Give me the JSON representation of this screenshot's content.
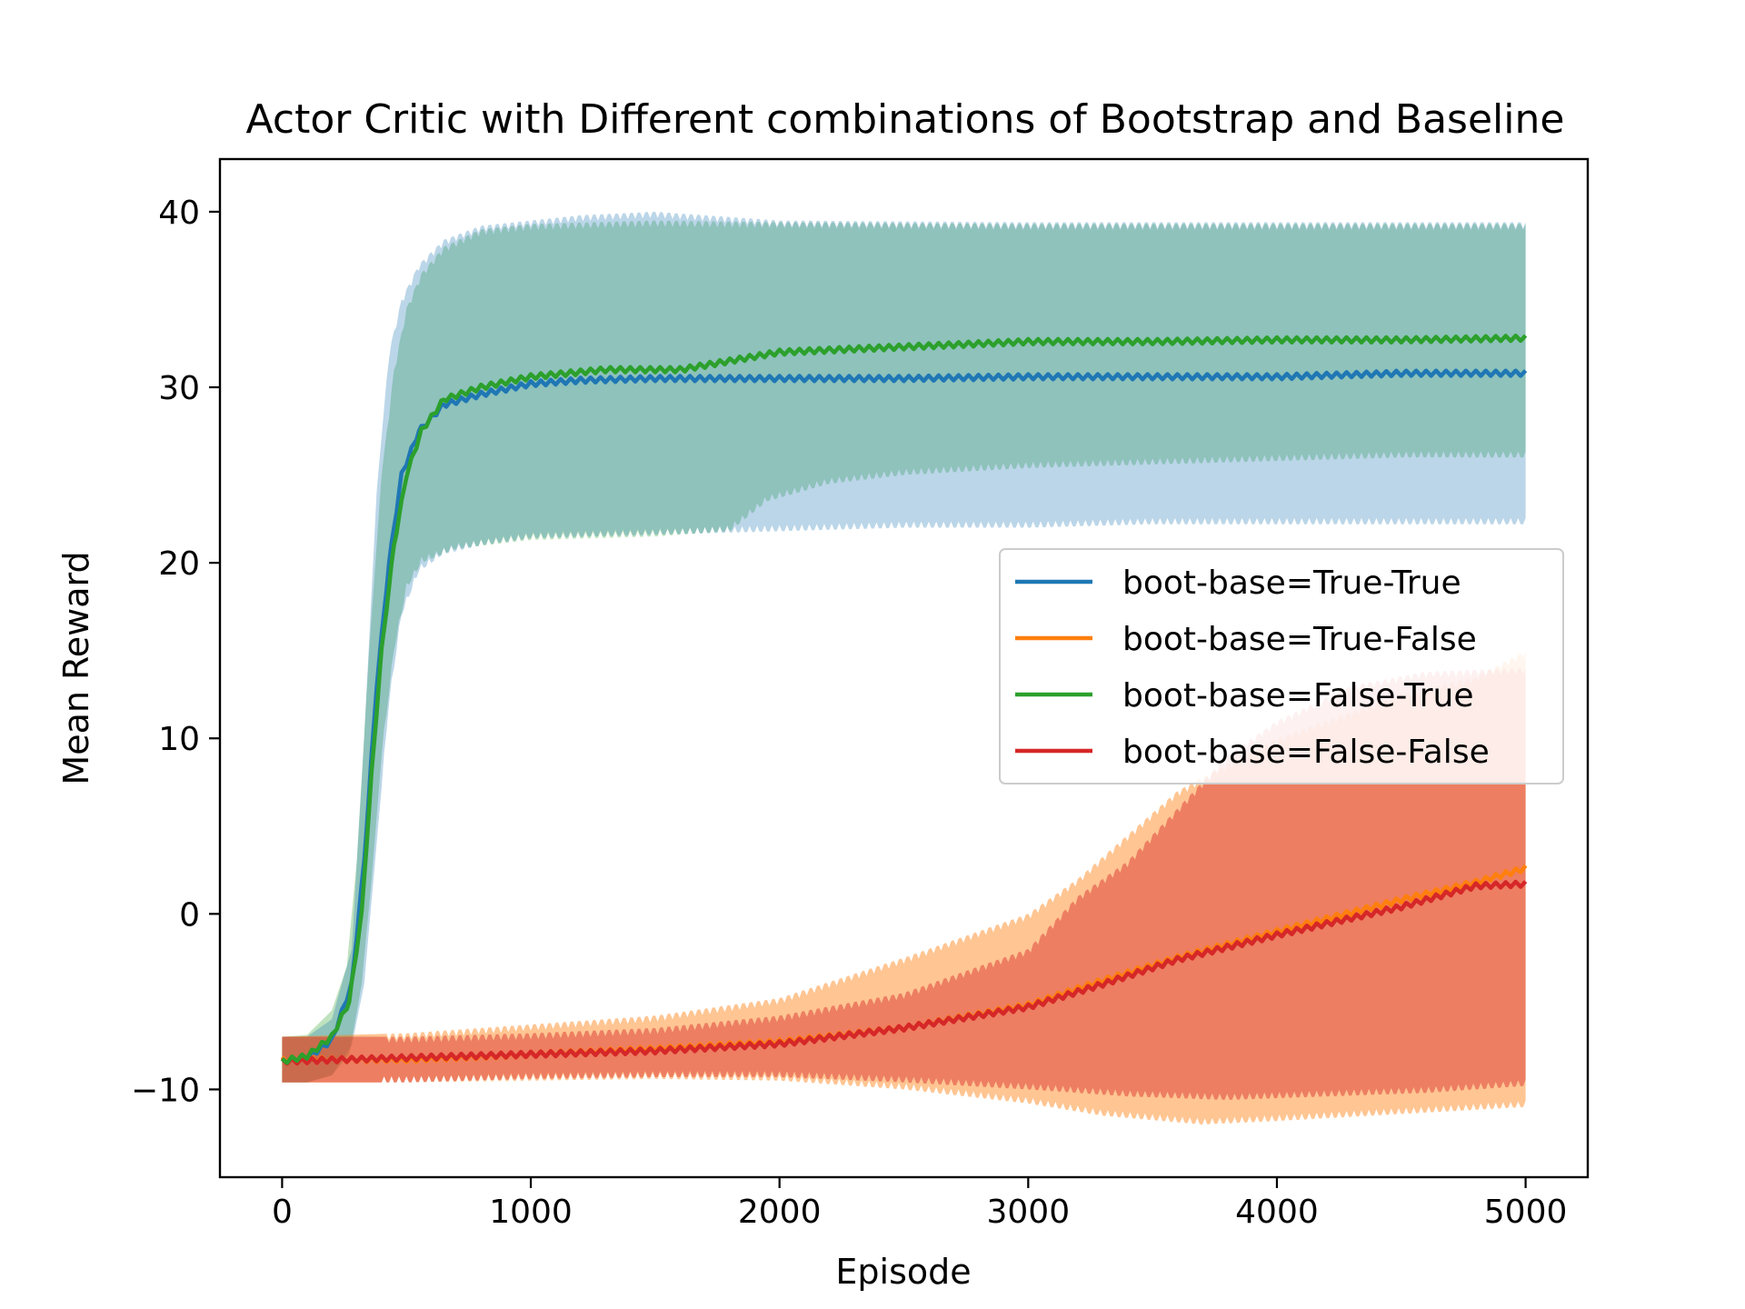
{
  "chart_data": {
    "type": "line",
    "title": "Actor Critic with Different combinations of Bootstrap and Baseline",
    "xlabel": "Episode",
    "ylabel": "Mean Reward",
    "xlim": [
      -250,
      5250
    ],
    "ylim": [
      -15,
      43
    ],
    "xticks": [
      0,
      1000,
      2000,
      3000,
      4000,
      5000
    ],
    "yticks": [
      -10,
      0,
      10,
      20,
      30,
      40
    ],
    "xtick_labels": [
      "0",
      "1000",
      "2000",
      "3000",
      "4000",
      "5000"
    ],
    "ytick_labels": [
      "−10",
      "0",
      "10",
      "20",
      "30",
      "40"
    ],
    "legend_position": "center-right",
    "grid": false,
    "series": [
      {
        "name": "boot-base=True-True",
        "color": "#1f77b4",
        "mean": [
          [
            0,
            -8.4
          ],
          [
            100,
            -8.2
          ],
          [
            200,
            -7.2
          ],
          [
            280,
            -4
          ],
          [
            330,
            3
          ],
          [
            380,
            13
          ],
          [
            430,
            20
          ],
          [
            480,
            25
          ],
          [
            550,
            27.5
          ],
          [
            650,
            29
          ],
          [
            800,
            29.6
          ],
          [
            1000,
            30.2
          ],
          [
            1200,
            30.4
          ],
          [
            1500,
            30.5
          ],
          [
            2000,
            30.5
          ],
          [
            2500,
            30.5
          ],
          [
            3000,
            30.6
          ],
          [
            3500,
            30.6
          ],
          [
            4000,
            30.6
          ],
          [
            4500,
            30.8
          ],
          [
            5000,
            30.8
          ]
        ],
        "upper": [
          [
            0,
            -7
          ],
          [
            100,
            -7
          ],
          [
            200,
            -6
          ],
          [
            280,
            -2
          ],
          [
            330,
            10
          ],
          [
            380,
            24
          ],
          [
            430,
            32
          ],
          [
            480,
            35
          ],
          [
            550,
            37
          ],
          [
            650,
            38.4
          ],
          [
            800,
            39.2
          ],
          [
            1000,
            39.5
          ],
          [
            1200,
            39.8
          ],
          [
            1500,
            40
          ],
          [
            1800,
            39.7
          ],
          [
            2000,
            39.5
          ],
          [
            3000,
            39.4
          ],
          [
            4000,
            39.4
          ],
          [
            5000,
            39.4
          ]
        ],
        "lower": [
          [
            0,
            -9.6
          ],
          [
            100,
            -9.6
          ],
          [
            200,
            -9.2
          ],
          [
            280,
            -7.5
          ],
          [
            330,
            -4
          ],
          [
            380,
            4
          ],
          [
            430,
            12
          ],
          [
            480,
            17
          ],
          [
            550,
            19.5
          ],
          [
            650,
            20.5
          ],
          [
            800,
            21
          ],
          [
            1000,
            21.4
          ],
          [
            1500,
            21.6
          ],
          [
            2000,
            21.8
          ],
          [
            2500,
            22
          ],
          [
            3000,
            22
          ],
          [
            3500,
            22.2
          ],
          [
            4000,
            22.2
          ],
          [
            4500,
            22.2
          ],
          [
            5000,
            22.2
          ]
        ]
      },
      {
        "name": "boot-base=True-False",
        "color": "#ff7f0e",
        "mean": [
          [
            0,
            -8.3
          ],
          [
            500,
            -8.3
          ],
          [
            1000,
            -8
          ],
          [
            1500,
            -7.7
          ],
          [
            2000,
            -7.3
          ],
          [
            2500,
            -6.5
          ],
          [
            3000,
            -5.2
          ],
          [
            3300,
            -3.8
          ],
          [
            3600,
            -2.5
          ],
          [
            4000,
            -1
          ],
          [
            4500,
            0.8
          ],
          [
            4800,
            1.8
          ],
          [
            5000,
            2.6
          ]
        ],
        "upper": [
          [
            0,
            -7
          ],
          [
            500,
            -6.8
          ],
          [
            1000,
            -6.3
          ],
          [
            1500,
            -5.8
          ],
          [
            2000,
            -4.8
          ],
          [
            2500,
            -2.5
          ],
          [
            3000,
            0
          ],
          [
            3200,
            2
          ],
          [
            3400,
            4.5
          ],
          [
            3600,
            7
          ],
          [
            3800,
            8.5
          ],
          [
            4000,
            10
          ],
          [
            4500,
            12.5
          ],
          [
            4800,
            13.5
          ],
          [
            5000,
            15
          ]
        ],
        "lower": [
          [
            0,
            -9.6
          ],
          [
            500,
            -9.6
          ],
          [
            1000,
            -9.5
          ],
          [
            1500,
            -9.4
          ],
          [
            2000,
            -9.5
          ],
          [
            2500,
            -10
          ],
          [
            3000,
            -10.8
          ],
          [
            3300,
            -11.5
          ],
          [
            3700,
            -12
          ],
          [
            4000,
            -11.8
          ],
          [
            4500,
            -11.4
          ],
          [
            5000,
            -11
          ]
        ]
      },
      {
        "name": "boot-base=False-True",
        "color": "#2ca02c",
        "mean": [
          [
            0,
            -8.4
          ],
          [
            100,
            -8.1
          ],
          [
            200,
            -7
          ],
          [
            270,
            -5
          ],
          [
            320,
            0
          ],
          [
            360,
            8
          ],
          [
            400,
            15
          ],
          [
            450,
            21
          ],
          [
            500,
            25
          ],
          [
            560,
            27.5
          ],
          [
            650,
            29.3
          ],
          [
            800,
            30
          ],
          [
            1000,
            30.6
          ],
          [
            1300,
            31
          ],
          [
            1600,
            31
          ],
          [
            1800,
            31.5
          ],
          [
            2000,
            32
          ],
          [
            2500,
            32.3
          ],
          [
            3000,
            32.6
          ],
          [
            3500,
            32.6
          ],
          [
            4000,
            32.7
          ],
          [
            4500,
            32.7
          ],
          [
            5000,
            32.8
          ]
        ],
        "upper": [
          [
            0,
            -7
          ],
          [
            100,
            -6.9
          ],
          [
            200,
            -5.5
          ],
          [
            260,
            -3
          ],
          [
            300,
            3
          ],
          [
            350,
            15
          ],
          [
            400,
            25
          ],
          [
            450,
            31
          ],
          [
            500,
            34.5
          ],
          [
            560,
            36.5
          ],
          [
            650,
            38
          ],
          [
            800,
            39
          ],
          [
            1000,
            39.3
          ],
          [
            1500,
            39.5
          ],
          [
            2000,
            39.4
          ],
          [
            3000,
            39.3
          ],
          [
            4000,
            39.3
          ],
          [
            5000,
            39.3
          ]
        ],
        "lower": [
          [
            0,
            -9.6
          ],
          [
            100,
            -9.6
          ],
          [
            200,
            -9.2
          ],
          [
            270,
            -8
          ],
          [
            320,
            -4
          ],
          [
            360,
            2
          ],
          [
            400,
            9
          ],
          [
            450,
            15
          ],
          [
            500,
            18.5
          ],
          [
            560,
            20
          ],
          [
            700,
            20.8
          ],
          [
            1000,
            21.3
          ],
          [
            1500,
            21.5
          ],
          [
            1800,
            21.8
          ],
          [
            1950,
            23.5
          ],
          [
            2200,
            24.5
          ],
          [
            2500,
            25
          ],
          [
            3000,
            25.4
          ],
          [
            3500,
            25.6
          ],
          [
            4000,
            25.8
          ],
          [
            4500,
            26
          ],
          [
            5000,
            26
          ]
        ]
      },
      {
        "name": "boot-base=False-False",
        "color": "#d62728",
        "mean": [
          [
            0,
            -8.4
          ],
          [
            500,
            -8.2
          ],
          [
            1000,
            -8
          ],
          [
            1500,
            -7.8
          ],
          [
            2000,
            -7.4
          ],
          [
            2500,
            -6.5
          ],
          [
            3000,
            -5.3
          ],
          [
            3300,
            -4
          ],
          [
            3600,
            -2.6
          ],
          [
            4000,
            -1.2
          ],
          [
            4500,
            0.4
          ],
          [
            4800,
            1.6
          ],
          [
            5000,
            1.7
          ]
        ],
        "upper": [
          [
            0,
            -7
          ],
          [
            500,
            -7
          ],
          [
            1000,
            -6.8
          ],
          [
            1500,
            -6.5
          ],
          [
            2000,
            -5.8
          ],
          [
            2500,
            -4.5
          ],
          [
            3000,
            -2
          ],
          [
            3200,
            1
          ],
          [
            3400,
            3
          ],
          [
            3600,
            6
          ],
          [
            3800,
            9
          ],
          [
            4000,
            11
          ],
          [
            4300,
            13
          ],
          [
            4600,
            13.8
          ],
          [
            5000,
            14
          ]
        ],
        "lower": [
          [
            0,
            -9.6
          ],
          [
            500,
            -9.6
          ],
          [
            1000,
            -9.4
          ],
          [
            1500,
            -9.3
          ],
          [
            2000,
            -9.3
          ],
          [
            2500,
            -9.6
          ],
          [
            3000,
            -10
          ],
          [
            3400,
            -10.4
          ],
          [
            3800,
            -10.6
          ],
          [
            4200,
            -10.4
          ],
          [
            4600,
            -10.2
          ],
          [
            5000,
            -9.8
          ]
        ]
      }
    ]
  }
}
